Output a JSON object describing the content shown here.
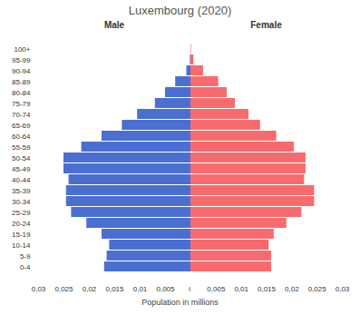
{
  "chart_data": {
    "type": "bar",
    "orientation": "horizontal",
    "title": "Luxembourg (2020)",
    "xlabel": "Population in millions",
    "categories": [
      "100+",
      "95-99",
      "90-94",
      "85-89",
      "80-84",
      "75-79",
      "70-74",
      "65-69",
      "60-64",
      "55-59",
      "50-54",
      "45-49",
      "40-44",
      "35-39",
      "30-34",
      "25-29",
      "20-24",
      "15-19",
      "10-14",
      "5-9",
      "0-4"
    ],
    "series": [
      {
        "name": "Male",
        "color": "#4a6fd0",
        "values": [
          0,
          0.0001,
          0.0008,
          0.003,
          0.005,
          0.007,
          0.0105,
          0.0135,
          0.0175,
          0.0215,
          0.025,
          0.025,
          0.024,
          0.0245,
          0.0245,
          0.0235,
          0.0205,
          0.0175,
          0.016,
          0.0165,
          0.017
        ]
      },
      {
        "name": "Female",
        "color": "#f76b6e",
        "values": [
          0.0001,
          0.0006,
          0.0025,
          0.0055,
          0.0072,
          0.0088,
          0.0115,
          0.0138,
          0.017,
          0.0205,
          0.0228,
          0.0228,
          0.0225,
          0.0245,
          0.0245,
          0.022,
          0.019,
          0.0165,
          0.0155,
          0.016,
          0.016
        ]
      }
    ],
    "xlim": [
      0,
      0.03
    ],
    "xticks": [
      {
        "value": 0,
        "label": "0"
      },
      {
        "value": 0.005,
        "label": "0,005"
      },
      {
        "value": 0.01,
        "label": "0,01"
      },
      {
        "value": 0.015,
        "label": "0,015"
      },
      {
        "value": 0.02,
        "label": "0,02"
      },
      {
        "value": 0.025,
        "label": "0,025"
      },
      {
        "value": 0.03,
        "label": "0,03"
      }
    ]
  }
}
